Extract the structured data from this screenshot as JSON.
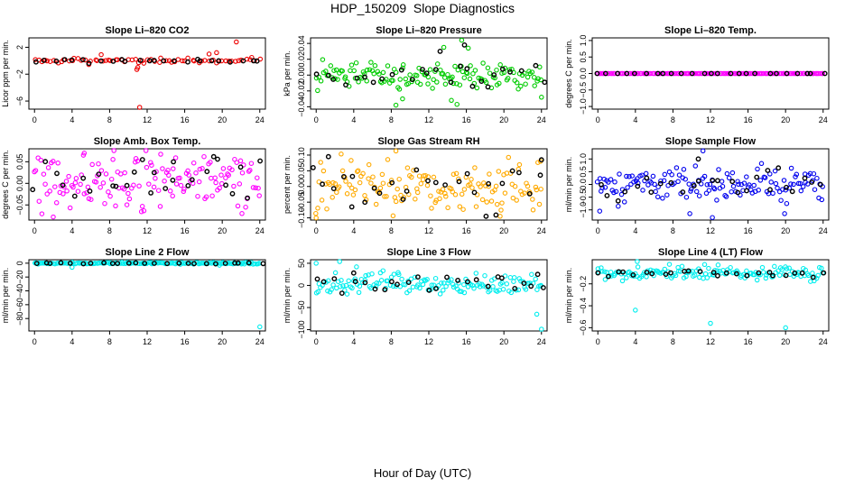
{
  "figure": {
    "title": "HDP_150209  Slope Diagnostics",
    "xlabel": "Hour of Day (UTC)"
  },
  "chart_data": [
    {
      "type": "scatter",
      "title": "Slope Li–820 CO2",
      "ylabel": "Licor ppm per min.",
      "xlim": [
        -0.6,
        24.6
      ],
      "ylim": [
        -7.2,
        3.4
      ],
      "xticks": [
        0,
        4,
        8,
        12,
        16,
        20,
        24
      ],
      "yticks": [
        2,
        -2,
        -6
      ],
      "ytick_labels": [
        "2",
        "−2",
        "−6"
      ],
      "grid": false,
      "series": [
        {
          "color": "#ee0000",
          "noise": 0.22,
          "base": 0.0,
          "freq": 0.7,
          "seed": 11,
          "outliers": [
            [
              11.2,
              -7.0
            ],
            [
              21.5,
              2.8
            ],
            [
              10.9,
              -1.3
            ],
            [
              11.0,
              -1.0
            ],
            [
              18.6,
              1.0
            ],
            [
              19.4,
              1.2
            ],
            [
              7.1,
              0.9
            ]
          ]
        },
        {
          "color": "#000000",
          "noise": 0.15,
          "base": 0.0,
          "freq": 0.25,
          "seed": 12,
          "outliers": []
        }
      ]
    },
    {
      "type": "scatter",
      "title": "Slope Li–820 Pressure",
      "ylabel": "kPa per min.",
      "xlim": [
        -0.6,
        24.6
      ],
      "ylim": [
        -0.043,
        0.047
      ],
      "xticks": [
        0,
        4,
        8,
        12,
        16,
        20,
        24
      ],
      "yticks": [
        0.04,
        0.02,
        0.0,
        -0.02,
        -0.04
      ],
      "ytick_labels": [
        "0.04",
        "0.02",
        "0.00",
        "−0.02",
        "−0.04"
      ],
      "grid": false,
      "series": [
        {
          "color": "#00cc00",
          "noise": 0.009,
          "base": 0.0,
          "freq": 1.5,
          "seed": 21,
          "outliers": [
            [
              15.5,
              0.044
            ],
            [
              8.5,
              -0.038
            ],
            [
              15.0,
              -0.037
            ],
            [
              24.0,
              -0.028
            ],
            [
              13.6,
              0.035
            ],
            [
              16.2,
              0.034
            ],
            [
              9.2,
              -0.03
            ],
            [
              14.4,
              -0.032
            ]
          ]
        },
        {
          "color": "#000000",
          "noise": 0.008,
          "base": 0.0,
          "freq": 0.25,
          "seed": 22,
          "outliers": [
            [
              15.8,
              0.038
            ],
            [
              13.2,
              0.03
            ],
            [
              18.3,
              -0.015
            ]
          ]
        }
      ]
    },
    {
      "type": "scatter",
      "title": "Slope Li–820 Temp.",
      "ylabel": "degrees C per min.",
      "xlim": [
        -0.6,
        24.6
      ],
      "ylim": [
        -1.08,
        1.08
      ],
      "xticks": [
        0,
        4,
        8,
        12,
        16,
        20,
        24
      ],
      "yticks": [
        1.0,
        0.5,
        0.0,
        -0.5,
        -1.0
      ],
      "ytick_labels": [
        "1.0",
        "0.5",
        "0.0",
        "−0.5",
        "−1.0"
      ],
      "grid": false,
      "series": [
        {
          "color": "#ff00ff",
          "noise": 0.0,
          "base": 0.0,
          "freq": 1.5,
          "seed": 31,
          "outliers": []
        },
        {
          "color": "#000000",
          "noise": 0.0,
          "base": 0.0,
          "freq": 0.25,
          "seed": 32,
          "outliers": []
        }
      ]
    },
    {
      "type": "scatter",
      "title": "Slope Amb. Box Temp.",
      "ylabel": "degrees C per min.",
      "xlim": [
        -0.6,
        24.6
      ],
      "ylim": [
        -0.085,
        0.08
      ],
      "xticks": [
        0,
        4,
        8,
        12,
        16,
        20,
        24
      ],
      "yticks": [
        0.05,
        0.0,
        -0.05
      ],
      "ytick_labels": [
        "0.05",
        "0.00",
        "−0.05"
      ],
      "grid": false,
      "series": [
        {
          "color": "#ff00ff",
          "noise": 0.032,
          "base": 0.005,
          "freq": 1.5,
          "seed": 41,
          "outliers": [
            [
              2.0,
              -0.078
            ],
            [
              22.1,
              -0.07
            ],
            [
              5.3,
              0.07
            ]
          ]
        },
        {
          "color": "#000000",
          "noise": 0.022,
          "base": 0.008,
          "freq": 0.25,
          "seed": 42,
          "outliers": [
            [
              11.5,
              0.055
            ],
            [
              19.5,
              0.056
            ],
            [
              14.8,
              0.05
            ]
          ]
        }
      ]
    },
    {
      "type": "scatter",
      "title": "Slope Gas Stream RH",
      "ylabel": "percent per min.",
      "xlim": [
        -0.6,
        24.6
      ],
      "ylim": [
        -0.107,
        0.12
      ],
      "xticks": [
        0,
        4,
        8,
        12,
        16,
        20,
        24
      ],
      "yticks": [
        0.1,
        0.05,
        0.0,
        -0.05,
        -0.1
      ],
      "ytick_labels": [
        "0.10",
        "0.05",
        "0.00",
        "−0.05",
        "−0.10"
      ],
      "grid": false,
      "series": [
        {
          "color": "#ffaa00",
          "noise": 0.04,
          "base": 0.0,
          "freq": 1.5,
          "seed": 51,
          "outliers": [
            [
              8.5,
              0.113
            ],
            [
              0.0,
              -0.1
            ],
            [
              19.6,
              -0.095
            ],
            [
              23.9,
              0.08
            ]
          ]
        },
        {
          "color": "#000000",
          "noise": 0.035,
          "base": 0.0,
          "freq": 0.25,
          "seed": 52,
          "outliers": [
            [
              1.3,
              0.095
            ],
            [
              24.0,
              0.085
            ],
            [
              18.1,
              -0.095
            ],
            [
              3.8,
              -0.065
            ]
          ]
        }
      ]
    },
    {
      "type": "scatter",
      "title": "Slope Sample Flow",
      "ylabel": "ml/min per min.",
      "xlim": [
        -0.6,
        24.6
      ],
      "ylim": [
        -1.4,
        1.4
      ],
      "xticks": [
        0,
        4,
        8,
        12,
        16,
        20,
        24
      ],
      "yticks": [
        1.0,
        0.5,
        0.0,
        -0.5,
        -1.0
      ],
      "ytick_labels": [
        "1.0",
        "0.5",
        "0.0",
        "−0.5",
        "−1.0"
      ],
      "grid": false,
      "series": [
        {
          "color": "#0000ee",
          "noise": 0.33,
          "base": 0.0,
          "freq": 1.5,
          "seed": 61,
          "outliers": [
            [
              11.2,
              1.32
            ],
            [
              12.2,
              -1.3
            ],
            [
              19.9,
              -1.15
            ],
            [
              9.8,
              -1.15
            ],
            [
              0.2,
              -1.05
            ]
          ]
        },
        {
          "color": "#000000",
          "noise": 0.25,
          "base": 0.0,
          "freq": 0.25,
          "seed": 62,
          "outliers": [
            [
              10.7,
              1.0
            ],
            [
              18.1,
              0.55
            ]
          ]
        }
      ]
    },
    {
      "type": "scatter",
      "title": "Slope Line 2 Flow",
      "ylabel": "ml/min per min.",
      "xlim": [
        -0.6,
        24.6
      ],
      "ylim": [
        -98,
        5
      ],
      "xticks": [
        0,
        4,
        8,
        12,
        16,
        20,
        24
      ],
      "yticks": [
        0,
        -20,
        -40,
        -60,
        -80
      ],
      "ytick_labels": [
        "0",
        "−20",
        "−40",
        "−60",
        "−80"
      ],
      "grid": false,
      "series": [
        {
          "color": "#00eeee",
          "noise": 0.6,
          "base": 0.0,
          "freq": 1.5,
          "seed": 71,
          "outliers": [
            [
              24.0,
              -92.0
            ],
            [
              4.0,
              -6.0
            ],
            [
              19.7,
              -3.0
            ]
          ]
        },
        {
          "color": "#000000",
          "noise": 0.4,
          "base": 0.0,
          "freq": 0.25,
          "seed": 72,
          "outliers": []
        }
      ]
    },
    {
      "type": "scatter",
      "title": "Slope Line 3 Flow",
      "ylabel": "ml/min per min.",
      "xlim": [
        -0.6,
        24.6
      ],
      "ylim": [
        -103,
        58
      ],
      "xticks": [
        0,
        4,
        8,
        12,
        16,
        20,
        24
      ],
      "yticks": [
        50,
        0,
        -50,
        -100
      ],
      "ytick_labels": [
        "50",
        "0",
        "−50",
        "−100"
      ],
      "grid": false,
      "series": [
        {
          "color": "#00eeee",
          "noise": 12.0,
          "base": 2.0,
          "freq": 1.5,
          "seed": 81,
          "outliers": [
            [
              2.5,
              56.0
            ],
            [
              0.0,
              50.0
            ],
            [
              24.0,
              -100.0
            ],
            [
              23.5,
              -65.0
            ],
            [
              4.3,
              42.0
            ]
          ]
        },
        {
          "color": "#000000",
          "noise": 9.0,
          "base": 3.0,
          "freq": 0.25,
          "seed": 82,
          "outliers": [
            [
              4.0,
              28.0
            ],
            [
              23.6,
              25.0
            ]
          ]
        }
      ]
    },
    {
      "type": "scatter",
      "title": "Slope Line 4 (LT) Flow",
      "ylabel": "ml/min per min.",
      "xlim": [
        -0.6,
        24.6
      ],
      "ylim": [
        -0.63,
        0.02
      ],
      "xticks": [
        0,
        4,
        8,
        12,
        16,
        20,
        24
      ],
      "yticks": [
        -0.2,
        -0.4,
        -0.6
      ],
      "ytick_labels": [
        "−0.2",
        "−0.4",
        "−0.6"
      ],
      "grid": false,
      "series": [
        {
          "color": "#00eeee",
          "noise": 0.03,
          "base": -0.1,
          "freq": 1.5,
          "seed": 91,
          "outliers": [
            [
              4.0,
              -0.44
            ],
            [
              12.0,
              -0.56
            ],
            [
              20.0,
              -0.6
            ],
            [
              4.2,
              0.01
            ]
          ]
        },
        {
          "color": "#000000",
          "noise": 0.022,
          "base": -0.1,
          "freq": 0.25,
          "seed": 92,
          "outliers": []
        }
      ]
    }
  ]
}
